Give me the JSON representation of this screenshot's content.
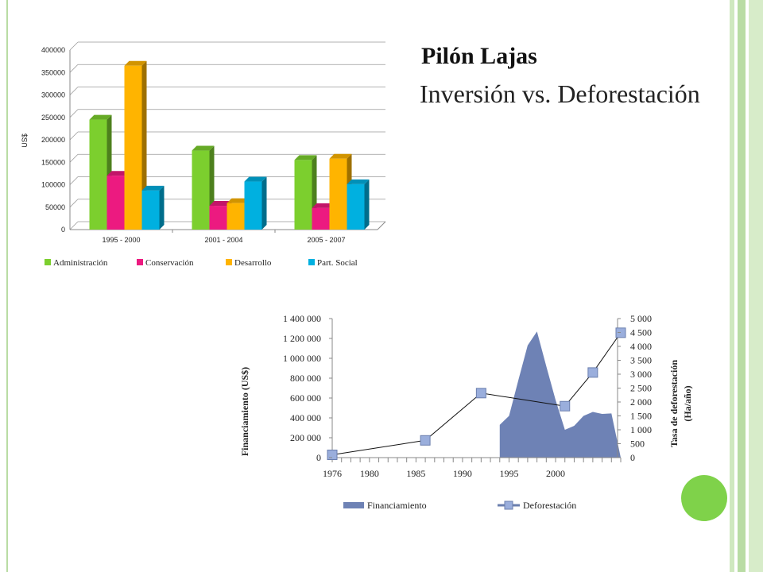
{
  "slide": {
    "title": "Pilón Lajas",
    "subtitle": "Inversión vs. Deforestación"
  },
  "chart_data": [
    {
      "type": "bar",
      "style": "3d-clustered-column",
      "categories": [
        "1995 - 2000",
        "2001 - 2004",
        "2005 - 2007"
      ],
      "series": [
        {
          "name": "Administración",
          "color": "#7ccf2e",
          "values": [
            245000,
            176000,
            155000
          ]
        },
        {
          "name": "Conservación",
          "color": "#ec1a80",
          "values": [
            120000,
            53000,
            48000
          ]
        },
        {
          "name": "Desarrollo",
          "color": "#ffb400",
          "values": [
            365000,
            59000,
            158000
          ]
        },
        {
          "name": "Part. Social",
          "color": "#00b0e0",
          "values": [
            87000,
            107000,
            101000
          ]
        }
      ],
      "ylabel": "US$",
      "ylim": [
        0,
        400000
      ],
      "yticks": [
        "0",
        "50000",
        "100000",
        "150000",
        "200000",
        "250000",
        "300000",
        "350000",
        "400000"
      ],
      "grid": true,
      "legend": "bottom"
    },
    {
      "type": "area+line",
      "x_ticks": [
        "1976",
        "1980",
        "1985",
        "1990",
        "1995",
        "2000"
      ],
      "series": [
        {
          "name": "Financiamiento",
          "kind": "area",
          "axis": "left",
          "color": "#6e82b5",
          "x": [
            1994,
            1995,
            1996,
            1997,
            1998,
            1999,
            2000,
            2001,
            2002,
            2003,
            2004,
            2005,
            2006,
            2007
          ],
          "values": [
            330000,
            420000,
            780000,
            1130000,
            1270000,
            920000,
            580000,
            280000,
            320000,
            420000,
            460000,
            440000,
            445000,
            0
          ]
        },
        {
          "name": "Deforestación",
          "kind": "line-markers",
          "axis": "right",
          "color": "#9aaedc",
          "x": [
            1976,
            1986,
            1992,
            2001,
            2004,
            2007
          ],
          "values": [
            100,
            620,
            2320,
            1850,
            3060,
            4490
          ]
        }
      ],
      "ylabel_left": "Financiamiento (US$)",
      "ylabel_right": "Tasa de deforestación (Ha/año)",
      "ylim_left": [
        0,
        1400000
      ],
      "ylim_right": [
        0,
        5000
      ],
      "yticks_left": [
        "0",
        "200 000",
        "400 000",
        "600 000",
        "800 000",
        "1 000 000",
        "1 200 000",
        "1 400 000"
      ],
      "yticks_right": [
        "0",
        "500",
        "1 000",
        "1 500",
        "2 000",
        "2 500",
        "3 000",
        "3 500",
        "4 000",
        "4 500",
        "5 000"
      ],
      "legend": "bottom"
    }
  ]
}
